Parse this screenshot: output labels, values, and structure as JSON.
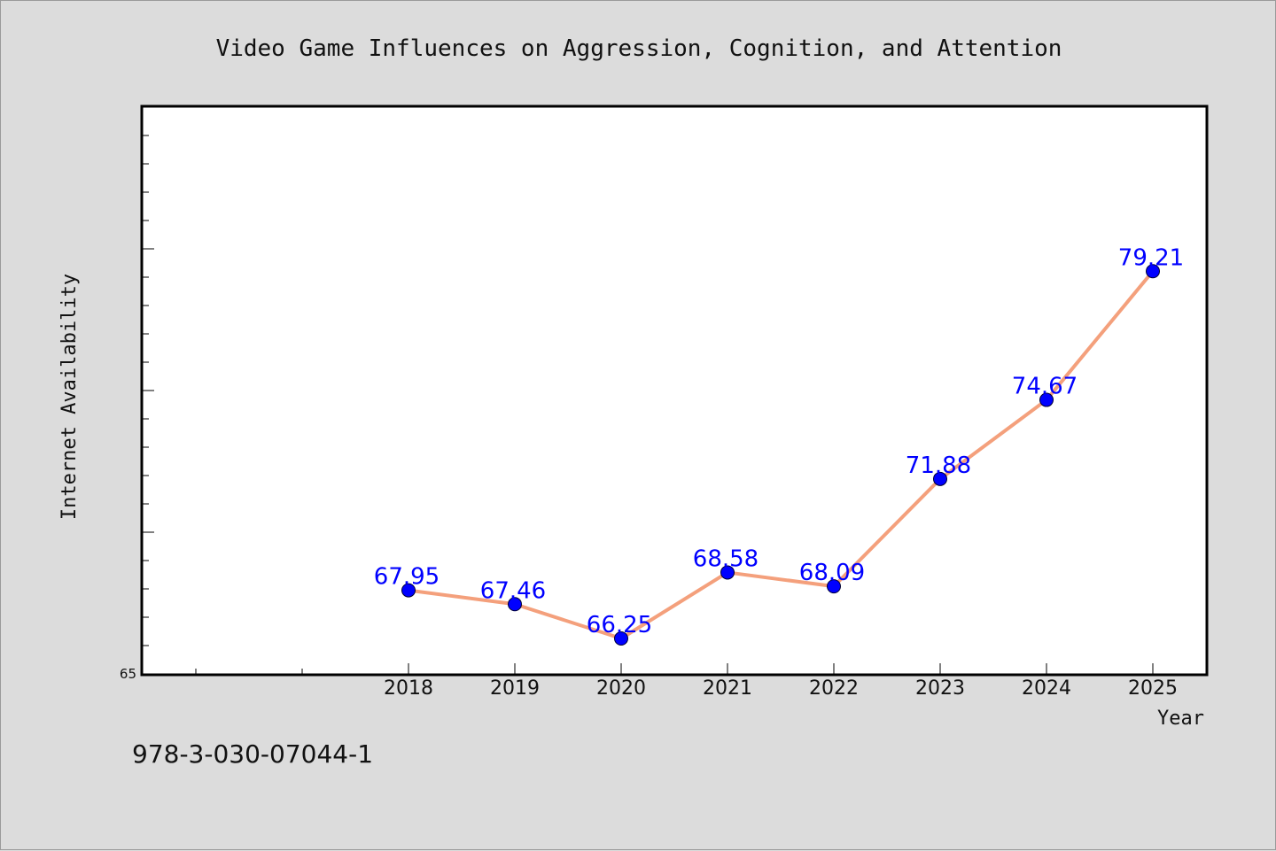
{
  "chart_data": {
    "type": "line",
    "title": "Video Game Influences on Aggression, Cognition, and Attention",
    "xlabel": "Year",
    "ylabel": "Internet Availability",
    "categories": [
      "2018",
      "2019",
      "2020",
      "2021",
      "2022",
      "2023",
      "2024",
      "2025"
    ],
    "series": [
      {
        "values": [
          67.95,
          67.46,
          66.25,
          68.58,
          68.09,
          71.88,
          74.67,
          79.21
        ],
        "labels": [
          "67.95",
          "67.46",
          "66.25",
          "68.58",
          "68.09",
          "71.88",
          "74.67",
          "79.21"
        ]
      }
    ],
    "ylim": [
      65,
      85
    ],
    "y_tick_labels": [
      "65"
    ],
    "grid": false,
    "legend": "none",
    "colors": {
      "line": "#f4a07c",
      "marker": "#0000ff",
      "data_label": "#0000ff",
      "plot_background": "#ffffff",
      "figure_background": "#dcdcdc"
    }
  },
  "footer_text": "978-3-030-07044-1"
}
